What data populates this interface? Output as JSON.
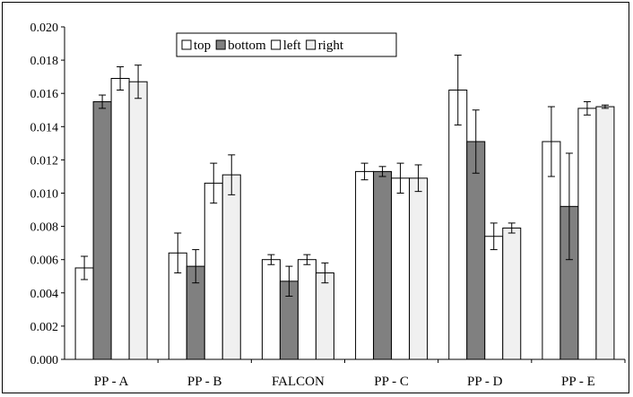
{
  "chart_data": {
    "type": "bar",
    "categories": [
      "PP - A",
      "PP - B",
      "FALCON",
      "PP - C",
      "PP - D",
      "PP - E"
    ],
    "ylim": [
      0,
      0.02
    ],
    "yticks": [
      "0.000",
      "0.002",
      "0.004",
      "0.006",
      "0.008",
      "0.010",
      "0.012",
      "0.014",
      "0.016",
      "0.018",
      "0.020"
    ],
    "grid": false,
    "legend_position": "top-center",
    "series": [
      {
        "name": "top",
        "color": "#ffffff",
        "values": [
          0.0055,
          0.0064,
          0.006,
          0.0113,
          0.0162,
          0.0131
        ],
        "errors": [
          0.0007,
          0.0012,
          0.0003,
          0.0005,
          0.0021,
          0.0021
        ]
      },
      {
        "name": "bottom",
        "color": "#808080",
        "values": [
          0.0155,
          0.0056,
          0.0047,
          0.0113,
          0.0131,
          0.0092
        ],
        "errors": [
          0.0004,
          0.001,
          0.0009,
          0.0003,
          0.0019,
          0.0032
        ]
      },
      {
        "name": "left",
        "color": "#ffffff",
        "values": [
          0.0169,
          0.0106,
          0.006,
          0.0109,
          0.0074,
          0.0151
        ],
        "errors": [
          0.0007,
          0.0012,
          0.0003,
          0.0009,
          0.0008,
          0.0004
        ]
      },
      {
        "name": "right",
        "color": "#f0f0f0",
        "values": [
          0.0167,
          0.0111,
          0.0052,
          0.0109,
          0.0079,
          0.0152
        ],
        "errors": [
          0.001,
          0.0012,
          0.0006,
          0.0008,
          0.0003,
          0.0001
        ]
      }
    ]
  }
}
